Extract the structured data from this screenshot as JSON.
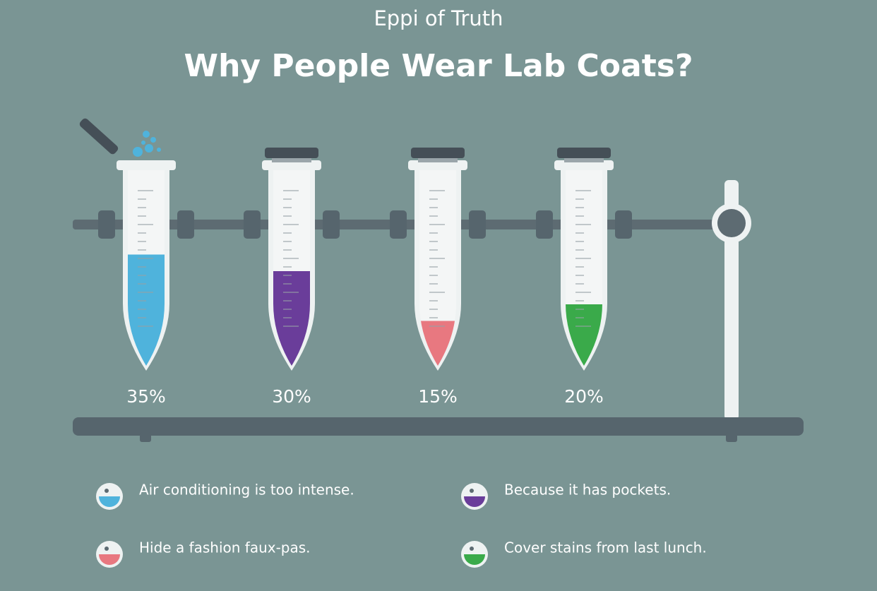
{
  "chart_data": {
    "type": "test-tube",
    "subtitle": "Eppi of Truth",
    "title": "Why People Wear Lab Coats?",
    "categories": [
      "Air conditioning is too intense.",
      "Because it has pockets.",
      "Hide a fashion faux-pas.",
      "Cover stains from last lunch."
    ],
    "values": [
      35,
      30,
      15,
      20
    ],
    "value_labels": [
      "35%",
      "30%",
      "15%",
      "20%"
    ],
    "colors": [
      "#4fb3dc",
      "#6a3d9a",
      "#e87880",
      "#3aaa4a"
    ]
  }
}
